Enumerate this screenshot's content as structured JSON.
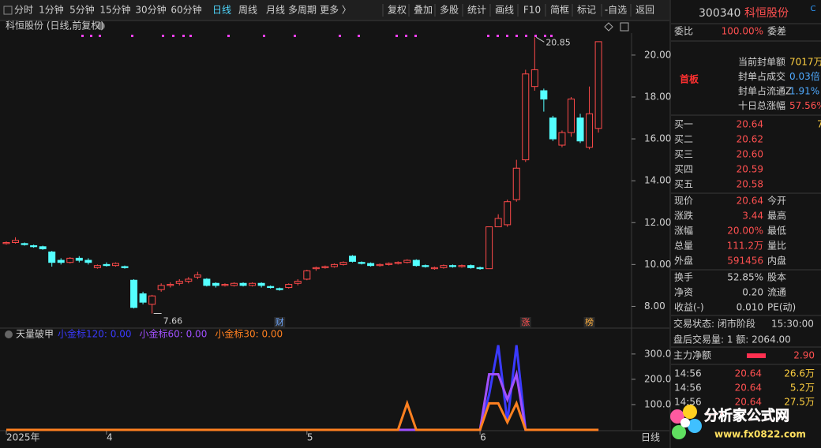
{
  "toolbar": {
    "periods": [
      "分时",
      "1分钟",
      "5分钟",
      "15分钟",
      "30分钟",
      "60分钟",
      "日线",
      "周线",
      "月线",
      "多周期",
      "更多 〉"
    ],
    "tools": [
      "复权",
      "叠加",
      "多股",
      "统计",
      "画线",
      "F10",
      "简框",
      "标记",
      "-自选",
      "返回"
    ]
  },
  "chart_data": [
    {
      "type": "candlestick",
      "title": "科恒股份 (日线,前复权)",
      "open": [
        11.0,
        11.05,
        11.0,
        10.9,
        10.85,
        10.6,
        10.2,
        10.1,
        10.3,
        10.2,
        9.85,
        10.0,
        9.95,
        9.9,
        9.25,
        8.6,
        8.1,
        8.8,
        9.0,
        9.1,
        9.2,
        9.4,
        9.3,
        9.1,
        9.0,
        9.0,
        9.1,
        9.0,
        9.1,
        8.95,
        8.85,
        8.9,
        9.1,
        9.3,
        9.8,
        9.85,
        9.9,
        10.0,
        10.4,
        10.1,
        10.05,
        9.95,
        10.0,
        10.05,
        10.1,
        10.2,
        9.95,
        9.8,
        9.85,
        9.95,
        9.9,
        9.95,
        9.85,
        9.8,
        11.8,
        11.9,
        13.1,
        15.0,
        18.5,
        18.3,
        17.0,
        15.7,
        16.3,
        17.0,
        15.6,
        16.5
      ],
      "high": [
        11.1,
        11.3,
        11.05,
        10.95,
        10.9,
        10.65,
        10.3,
        10.35,
        10.4,
        10.3,
        10.0,
        10.1,
        10.1,
        9.95,
        9.3,
        8.7,
        8.55,
        9.1,
        9.15,
        9.3,
        9.4,
        9.65,
        9.35,
        9.15,
        9.1,
        9.15,
        9.15,
        9.15,
        9.15,
        9.0,
        8.9,
        9.1,
        9.3,
        9.75,
        9.9,
        9.95,
        10.05,
        10.15,
        10.45,
        10.15,
        10.1,
        10.05,
        10.1,
        10.15,
        10.25,
        10.25,
        10.0,
        9.9,
        10.0,
        10.0,
        10.0,
        10.0,
        9.9,
        11.8,
        12.4,
        13.1,
        15.0,
        19.3,
        20.85,
        18.4,
        17.1,
        16.4,
        18.0,
        17.2,
        18.5,
        20.64
      ],
      "low": [
        10.95,
        11.0,
        10.9,
        10.8,
        10.7,
        9.9,
        10.0,
        10.05,
        10.1,
        10.0,
        9.8,
        9.9,
        9.9,
        9.8,
        7.9,
        8.1,
        7.66,
        8.7,
        8.9,
        9.0,
        9.1,
        9.3,
        8.95,
        8.9,
        8.95,
        8.95,
        8.95,
        8.95,
        8.9,
        8.85,
        8.75,
        8.85,
        9.0,
        9.25,
        9.7,
        9.8,
        9.85,
        9.95,
        10.1,
        10.0,
        9.9,
        9.9,
        9.95,
        10.0,
        10.05,
        9.9,
        9.85,
        9.75,
        9.8,
        9.85,
        9.85,
        9.8,
        9.75,
        9.8,
        11.8,
        11.8,
        13.0,
        14.9,
        18.3,
        17.3,
        15.9,
        15.6,
        16.1,
        15.8,
        15.5,
        16.3
      ],
      "close": [
        11.05,
        11.15,
        10.95,
        10.85,
        10.75,
        10.1,
        10.1,
        10.3,
        10.2,
        10.1,
        9.95,
        9.95,
        10.05,
        9.85,
        7.95,
        8.2,
        8.5,
        9.0,
        9.05,
        9.2,
        9.3,
        9.5,
        9.0,
        9.0,
        9.05,
        9.1,
        9.0,
        9.1,
        9.0,
        8.9,
        8.8,
        9.05,
        9.2,
        9.7,
        9.85,
        9.9,
        10.0,
        10.1,
        10.15,
        10.05,
        9.95,
        10.0,
        10.05,
        10.1,
        10.2,
        9.95,
        9.9,
        9.85,
        9.95,
        9.9,
        9.95,
        9.85,
        9.8,
        11.8,
        12.2,
        13.0,
        14.6,
        19.1,
        19.3,
        17.9,
        16.0,
        16.3,
        17.9,
        15.9,
        17.2,
        20.64
      ],
      "up_color": "#ff4a4a",
      "down_color": "#54ffff",
      "ylim": [
        7.0,
        21.05
      ],
      "yticks": [
        {
          "value": 8,
          "label": "8.00"
        },
        {
          "value": 10,
          "label": "10.00"
        },
        {
          "value": 12,
          "label": "12.00"
        },
        {
          "value": 14,
          "label": "14.00"
        },
        {
          "value": 16,
          "label": "16.00"
        },
        {
          "value": 18,
          "label": "18.00"
        },
        {
          "value": 20,
          "label": "20.00"
        }
      ],
      "xticks": [
        {
          "value": 0,
          "label": "2025年"
        },
        {
          "value": 11,
          "label": "4"
        },
        {
          "value": 33,
          "label": "5"
        },
        {
          "value": 52,
          "label": "6"
        }
      ],
      "annotations": [
        {
          "index": 58,
          "value": 20.85
        },
        {
          "index": 16,
          "value": 7.66
        }
      ],
      "markers": [
        {
          "index": 30,
          "label": "财"
        },
        {
          "index": 57,
          "label": "涨"
        },
        {
          "index": 64,
          "label": "榜"
        }
      ],
      "period_label": "日线"
    },
    {
      "type": "line",
      "title": "天量破甲",
      "series": [
        {
          "legend": "小金标120: 0.00",
          "color": "#3a3aff",
          "values": [
            0,
            0,
            0,
            0,
            0,
            0,
            0,
            0,
            0,
            0,
            0,
            0,
            0,
            0,
            0,
            0,
            0,
            0,
            0,
            0,
            0,
            0,
            0,
            0,
            0,
            0,
            0,
            0,
            0,
            0,
            0,
            0,
            0,
            0,
            0,
            0,
            0,
            0,
            0,
            0,
            0,
            0,
            0,
            0,
            0,
            0,
            0,
            0,
            0,
            0,
            0,
            0,
            0,
            140,
            335,
            30,
            335,
            0,
            0,
            0,
            0,
            0,
            0,
            0,
            0,
            0
          ]
        },
        {
          "legend": "小金标60: 0.00",
          "color": "#a050ff",
          "values": [
            0,
            0,
            0,
            0,
            0,
            0,
            0,
            0,
            0,
            0,
            0,
            0,
            0,
            0,
            0,
            0,
            0,
            0,
            0,
            0,
            0,
            0,
            0,
            0,
            0,
            0,
            0,
            0,
            0,
            0,
            0,
            0,
            0,
            0,
            0,
            0,
            0,
            0,
            0,
            0,
            0,
            0,
            0,
            0,
            0,
            0,
            0,
            0,
            0,
            0,
            0,
            0,
            0,
            220,
            220,
            120,
            220,
            0,
            0,
            0,
            0,
            0,
            0,
            0,
            0,
            0
          ]
        },
        {
          "legend": "小金标30: 0.00",
          "color": "#ff8020",
          "values": [
            0,
            0,
            0,
            0,
            0,
            0,
            0,
            0,
            0,
            0,
            0,
            0,
            0,
            0,
            0,
            0,
            0,
            0,
            0,
            0,
            0,
            0,
            0,
            0,
            0,
            0,
            0,
            0,
            0,
            0,
            0,
            0,
            0,
            0,
            0,
            0,
            0,
            0,
            0,
            0,
            0,
            0,
            0,
            0,
            105,
            0,
            0,
            0,
            0,
            0,
            0,
            0,
            0,
            105,
            105,
            30,
            105,
            0,
            0,
            0,
            0,
            0,
            0,
            0,
            0,
            0
          ]
        }
      ],
      "ylim": [
        0,
        390
      ],
      "yticks": [
        {
          "value": 100,
          "label": "100.0"
        },
        {
          "value": 200,
          "label": "200.0"
        },
        {
          "value": 300,
          "label": "300.0"
        }
      ]
    }
  ],
  "panel": {
    "code": "300340",
    "name": "科恒股份",
    "weibi": [
      "委比",
      "100.00%",
      "委差"
    ],
    "tag": "首板",
    "seal": [
      [
        "当前封单额",
        "7017万"
      ],
      [
        "封单占成交",
        "0.03倍"
      ],
      [
        "封单占流通Z",
        "1.91%"
      ],
      [
        "十日总涨幅",
        "57.56%"
      ]
    ],
    "bids": [
      [
        "买一",
        "20.64",
        "7"
      ],
      [
        "买二",
        "20.62"
      ],
      [
        "买三",
        "20.60"
      ],
      [
        "买四",
        "20.59"
      ],
      [
        "买五",
        "20.58"
      ]
    ],
    "stats": [
      [
        "现价",
        "20.64",
        "今开"
      ],
      [
        "涨跌",
        "3.44",
        "最高"
      ],
      [
        "涨幅",
        "20.00%",
        "最低"
      ],
      [
        "总量",
        "111.2万",
        "量比"
      ],
      [
        "外盘",
        "591456",
        "内盘"
      ],
      [
        "换手",
        "52.85%",
        "股本"
      ],
      [
        "净资",
        "0.20",
        "流通"
      ],
      [
        "收益(-)",
        "0.010",
        "PE(动)"
      ]
    ],
    "status": [
      "交易状态: 闭市阶段",
      "15:30:00"
    ],
    "after_hours": "盘后交易量: 1  额: 2064.00",
    "main_net": [
      "主力净额",
      "2.90"
    ],
    "trades": [
      [
        "14:56",
        "20.64",
        "26.6万"
      ],
      [
        "14:56",
        "20.64",
        "5.2万"
      ],
      [
        "14:56",
        "20.64",
        "27.5万"
      ]
    ]
  },
  "watermark": {
    "name": "分析家公式网",
    "url": "www.fx0822.com"
  }
}
